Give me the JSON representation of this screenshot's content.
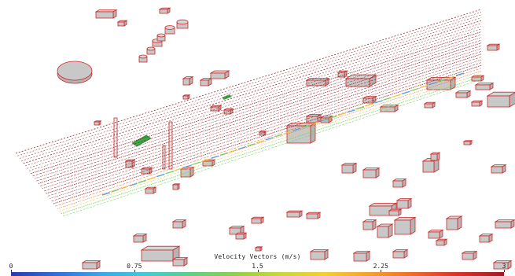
{
  "legend": {
    "title": "Velocity Vectors (m/s)",
    "ticks": [
      "0",
      "0.75",
      "1.5",
      "2.25",
      "3"
    ],
    "tick_values": [
      0,
      0.75,
      1.5,
      2.25,
      3
    ],
    "range": [
      0,
      3
    ],
    "colors": [
      "#2b3aa8",
      "#2f6fd6",
      "#3aa6e8",
      "#45c9d6",
      "#5ad08a",
      "#8fd04a",
      "#c6d83a",
      "#f2d12e",
      "#f4a12c",
      "#ee6a28",
      "#d8312c",
      "#a01c24"
    ]
  },
  "scene": {
    "building_color": "#c8c8c8",
    "outline_color": "#cc2a2a",
    "vector_colors": {
      "low": "#4a9fe0",
      "mid": "#6ccf55",
      "high": "#f0c23a",
      "peak": "#e0622a",
      "max": "#8b1c22"
    },
    "green_object_color": "#3aa845"
  }
}
